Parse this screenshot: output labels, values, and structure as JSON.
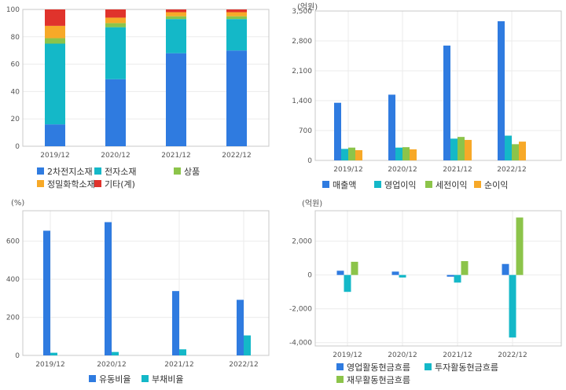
{
  "colors": {
    "blue": "#2f7be0",
    "teal": "#14b8c8",
    "green": "#8cc44a",
    "orange": "#f7a928",
    "red": "#e0332c"
  },
  "chart_data": [
    {
      "type": "bar",
      "stacked": true,
      "unit": "",
      "categories": [
        "2019/12",
        "2020/12",
        "2021/12",
        "2022/12"
      ],
      "series": [
        {
          "name": "2차전지소재",
          "values": [
            16,
            49,
            68,
            70
          ]
        },
        {
          "name": "전자소재",
          "values": [
            59,
            38,
            25,
            23
          ]
        },
        {
          "name": "상품",
          "values": [
            4,
            3,
            2,
            2
          ]
        },
        {
          "name": "정밀화학소재",
          "values": [
            9,
            4,
            3,
            3
          ]
        },
        {
          "name": "기타(계)",
          "values": [
            12,
            6,
            2,
            2
          ]
        }
      ],
      "ylim": [
        0,
        100
      ],
      "yticks": [
        0,
        20,
        40,
        60,
        80,
        100
      ],
      "grid": true
    },
    {
      "type": "bar",
      "unit": "(억원)",
      "categories": [
        "2019/12",
        "2020/12",
        "2021/12",
        "2022/12"
      ],
      "series": [
        {
          "name": "매출액",
          "values": [
            1350,
            1540,
            2690,
            3260
          ]
        },
        {
          "name": "영업이익",
          "values": [
            270,
            300,
            510,
            580
          ]
        },
        {
          "name": "세전이익",
          "values": [
            300,
            310,
            550,
            380
          ]
        },
        {
          "name": "순이익",
          "values": [
            240,
            260,
            480,
            440
          ]
        }
      ],
      "ylim": [
        0,
        3500
      ],
      "yticks": [
        0,
        700,
        1400,
        2100,
        2800,
        3500
      ],
      "yticklabels": [
        "0",
        "700",
        "1,400",
        "2,100",
        "2,800",
        "3,500"
      ],
      "grid": true
    },
    {
      "type": "bar",
      "unit": "(%)",
      "categories": [
        "2019/12",
        "2020/12",
        "2021/12",
        "2022/12"
      ],
      "series": [
        {
          "name": "유동비율",
          "values": [
            655,
            700,
            338,
            292
          ]
        },
        {
          "name": "부채비율",
          "values": [
            14,
            18,
            32,
            105
          ]
        }
      ],
      "ylim": [
        0,
        760
      ],
      "yticks": [
        0,
        200,
        400,
        600
      ],
      "yticklabels": [
        "0",
        "200",
        "400",
        "600"
      ],
      "grid": true
    },
    {
      "type": "bar",
      "unit": "(억원)",
      "categories": [
        "2019/12",
        "2020/12",
        "2021/12",
        "2022/12"
      ],
      "series": [
        {
          "name": "영업활동현금흐름",
          "values": [
            250,
            200,
            -100,
            650
          ]
        },
        {
          "name": "투자활동현금흐름",
          "values": [
            -1000,
            -150,
            -450,
            -3700
          ]
        },
        {
          "name": "재무활동현금흐름",
          "values": [
            780,
            0,
            820,
            3400
          ]
        }
      ],
      "ylim": [
        -4200,
        3800
      ],
      "yticks": [
        -4000,
        -2000,
        0,
        2000
      ],
      "yticklabels": [
        "-4,000",
        "-2,000",
        "0",
        "2,000"
      ],
      "grid": true
    }
  ]
}
